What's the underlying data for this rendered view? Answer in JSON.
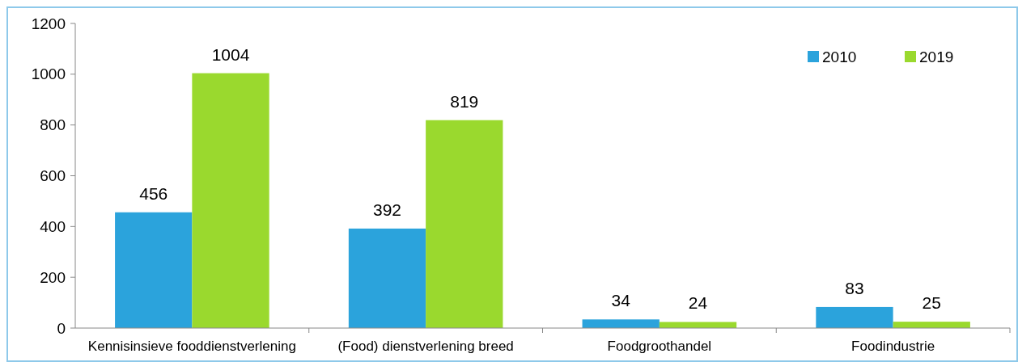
{
  "chart_data": {
    "type": "bar",
    "categories": [
      "Kennisinsieve fooddienstverlening",
      "(Food) dienstverlening breed",
      "Foodgroothandel",
      "Foodindustrie"
    ],
    "series": [
      {
        "name": "2010",
        "color": "#2ba3dc",
        "values": [
          456,
          392,
          34,
          83
        ]
      },
      {
        "name": "2019",
        "color": "#9ad92e",
        "values": [
          1004,
          819,
          24,
          25
        ]
      }
    ],
    "ylim": [
      0,
      1200
    ],
    "yticks": [
      0,
      200,
      400,
      600,
      800,
      1000,
      1200
    ],
    "grid": false,
    "legend": "top right",
    "data_labels": true
  }
}
